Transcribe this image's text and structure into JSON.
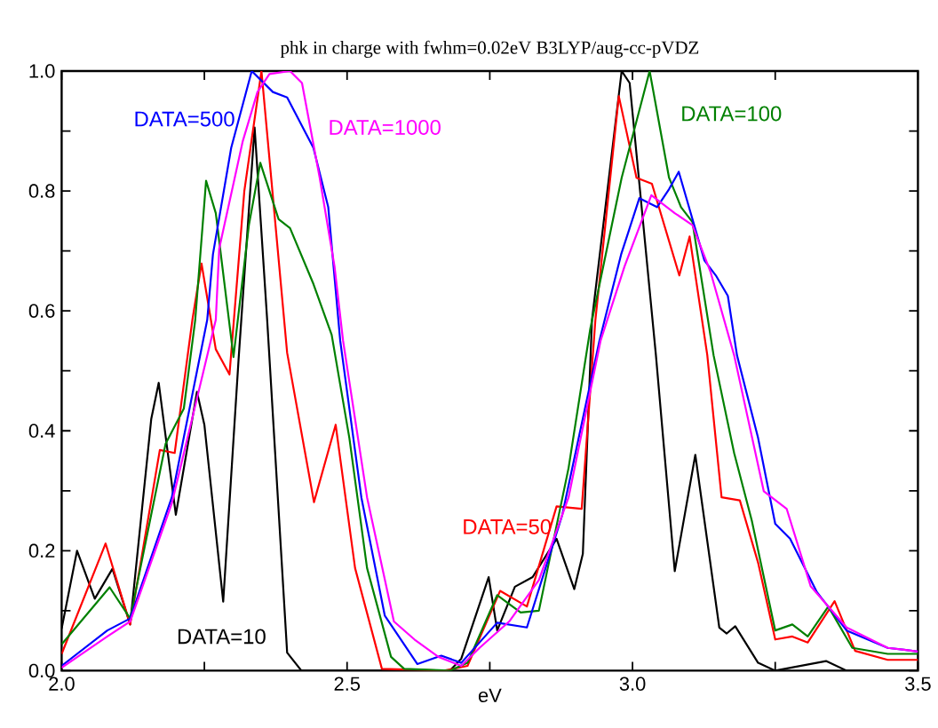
{
  "chart_data": {
    "type": "line",
    "title": "phk in charge with fwhm=0.02eV B3LYP/aug-cc-pVDZ",
    "xlabel": "eV",
    "xlim": [
      2.0,
      3.5
    ],
    "ylim": [
      0,
      1.0
    ],
    "marker": "none",
    "legend": false,
    "xticks": [
      {
        "value": 2.0,
        "label": "2.0"
      },
      {
        "value": 2.25,
        "label": null
      },
      {
        "value": 2.5,
        "label": "2.5"
      },
      {
        "value": 2.75,
        "label": null
      },
      {
        "value": 3.0,
        "label": "3.0"
      },
      {
        "value": 3.25,
        "label": null
      },
      {
        "value": 3.5,
        "label": "3.5"
      }
    ],
    "yticks": [
      {
        "value": 0,
        "label": "0.0"
      },
      {
        "value": 0.1,
        "label": null
      },
      {
        "value": 0.2,
        "label": "0.2"
      },
      {
        "value": 0.3,
        "label": null
      },
      {
        "value": 0.4,
        "label": "0.4"
      },
      {
        "value": 0.5,
        "label": null
      },
      {
        "value": 0.6,
        "label": "0.6"
      },
      {
        "value": 0.7,
        "label": null
      },
      {
        "value": 0.8,
        "label": "0.8"
      },
      {
        "value": 0.9,
        "label": null
      },
      {
        "value": 1.0,
        "label": "1.0"
      }
    ],
    "series": [
      {
        "name": "DATA=10",
        "color": "#000000",
        "x": [
          2.0,
          2.027,
          2.058,
          2.089,
          2.12,
          2.157,
          2.17,
          2.2,
          2.237,
          2.25,
          2.283,
          2.31,
          2.338,
          2.36,
          2.395,
          2.42,
          2.68,
          2.7,
          2.748,
          2.763,
          2.794,
          2.825,
          2.867,
          2.898,
          2.913,
          2.929,
          2.981,
          2.995,
          3.041,
          3.074,
          3.11,
          3.152,
          3.165,
          3.18,
          3.22,
          3.25,
          3.339,
          3.375,
          3.5
        ],
        "values": [
          0.07,
          0.2,
          0.12,
          0.17,
          0.077,
          0.42,
          0.48,
          0.26,
          0.465,
          0.41,
          0.115,
          0.52,
          0.906,
          0.585,
          0.03,
          0.0,
          0.0,
          0.02,
          0.156,
          0.067,
          0.14,
          0.156,
          0.22,
          0.136,
          0.195,
          0.585,
          1.0,
          0.98,
          0.526,
          0.166,
          0.36,
          0.072,
          0.062,
          0.074,
          0.013,
          0.0,
          0.016,
          0.0,
          0.0
        ]
      },
      {
        "name": "DATA=50",
        "color": "#ff0000",
        "x": [
          2.0,
          2.077,
          2.12,
          2.172,
          2.198,
          2.229,
          2.245,
          2.27,
          2.294,
          2.32,
          2.35,
          2.395,
          2.442,
          2.48,
          2.514,
          2.561,
          2.67,
          2.711,
          2.768,
          2.815,
          2.867,
          2.911,
          2.935,
          2.976,
          3.007,
          3.034,
          3.082,
          3.1,
          3.131,
          3.156,
          3.188,
          3.22,
          3.25,
          3.28,
          3.307,
          3.354,
          3.39,
          3.447,
          3.5
        ],
        "values": [
          0.028,
          0.212,
          0.077,
          0.368,
          0.363,
          0.585,
          0.679,
          0.536,
          0.494,
          0.8,
          1.0,
          0.53,
          0.281,
          0.41,
          0.171,
          0.003,
          0.0,
          0.008,
          0.133,
          0.107,
          0.274,
          0.27,
          0.585,
          0.958,
          0.822,
          0.812,
          0.659,
          0.724,
          0.526,
          0.289,
          0.284,
          0.18,
          0.052,
          0.057,
          0.047,
          0.116,
          0.033,
          0.018,
          0.018
        ]
      },
      {
        "name": "DATA=100",
        "color": "#008000",
        "x": [
          2.0,
          2.084,
          2.12,
          2.182,
          2.214,
          2.234,
          2.253,
          2.27,
          2.301,
          2.328,
          2.348,
          2.38,
          2.4,
          2.441,
          2.473,
          2.504,
          2.535,
          2.577,
          2.6,
          2.68,
          2.711,
          2.763,
          2.804,
          2.836,
          2.888,
          2.926,
          2.981,
          3.03,
          3.064,
          3.085,
          3.105,
          3.142,
          3.178,
          3.209,
          3.25,
          3.28,
          3.307,
          3.343,
          3.385,
          3.447,
          3.5
        ],
        "values": [
          0.044,
          0.139,
          0.087,
          0.378,
          0.437,
          0.585,
          0.817,
          0.763,
          0.523,
          0.743,
          0.847,
          0.753,
          0.738,
          0.645,
          0.56,
          0.388,
          0.171,
          0.023,
          0.003,
          0.0,
          0.013,
          0.126,
          0.097,
          0.1,
          0.338,
          0.57,
          0.822,
          1.0,
          0.822,
          0.773,
          0.748,
          0.526,
          0.363,
          0.25,
          0.067,
          0.077,
          0.057,
          0.107,
          0.038,
          0.028,
          0.028
        ]
      },
      {
        "name": "DATA=500",
        "color": "#0000ff",
        "x": [
          2.0,
          2.08,
          2.12,
          2.193,
          2.255,
          2.265,
          2.297,
          2.333,
          2.37,
          2.395,
          2.441,
          2.467,
          2.488,
          2.525,
          2.566,
          2.623,
          2.665,
          2.7,
          2.763,
          2.815,
          2.877,
          2.942,
          2.98,
          3.012,
          3.043,
          3.064,
          3.081,
          3.105,
          3.126,
          3.146,
          3.167,
          3.183,
          3.22,
          3.25,
          3.276,
          3.323,
          3.375,
          3.447,
          3.5
        ],
        "values": [
          0.008,
          0.067,
          0.087,
          0.289,
          0.585,
          0.694,
          0.872,
          1.0,
          0.965,
          0.956,
          0.872,
          0.773,
          0.55,
          0.289,
          0.092,
          0.011,
          0.025,
          0.013,
          0.08,
          0.072,
          0.26,
          0.55,
          0.694,
          0.788,
          0.773,
          0.803,
          0.832,
          0.753,
          0.684,
          0.659,
          0.625,
          0.526,
          0.388,
          0.245,
          0.22,
          0.131,
          0.067,
          0.038,
          0.032
        ]
      },
      {
        "name": "DATA=1000",
        "color": "#ff00ff",
        "x": [
          2.0,
          2.08,
          2.12,
          2.193,
          2.27,
          2.276,
          2.317,
          2.343,
          2.364,
          2.4,
          2.421,
          2.452,
          2.478,
          2.493,
          2.535,
          2.582,
          2.618,
          2.66,
          2.7,
          2.732,
          2.784,
          2.836,
          2.888,
          2.944,
          2.986,
          3.033,
          3.074,
          3.105,
          3.137,
          3.178,
          3.23,
          3.27,
          3.312,
          3.375,
          3.447,
          3.5
        ],
        "values": [
          0.005,
          0.057,
          0.082,
          0.279,
          0.585,
          0.704,
          0.882,
          0.965,
          0.995,
          1.0,
          0.98,
          0.822,
          0.674,
          0.55,
          0.289,
          0.082,
          0.052,
          0.023,
          0.008,
          0.038,
          0.082,
          0.151,
          0.289,
          0.55,
          0.674,
          0.793,
          0.763,
          0.743,
          0.664,
          0.526,
          0.299,
          0.27,
          0.141,
          0.072,
          0.038,
          0.032
        ]
      }
    ]
  }
}
